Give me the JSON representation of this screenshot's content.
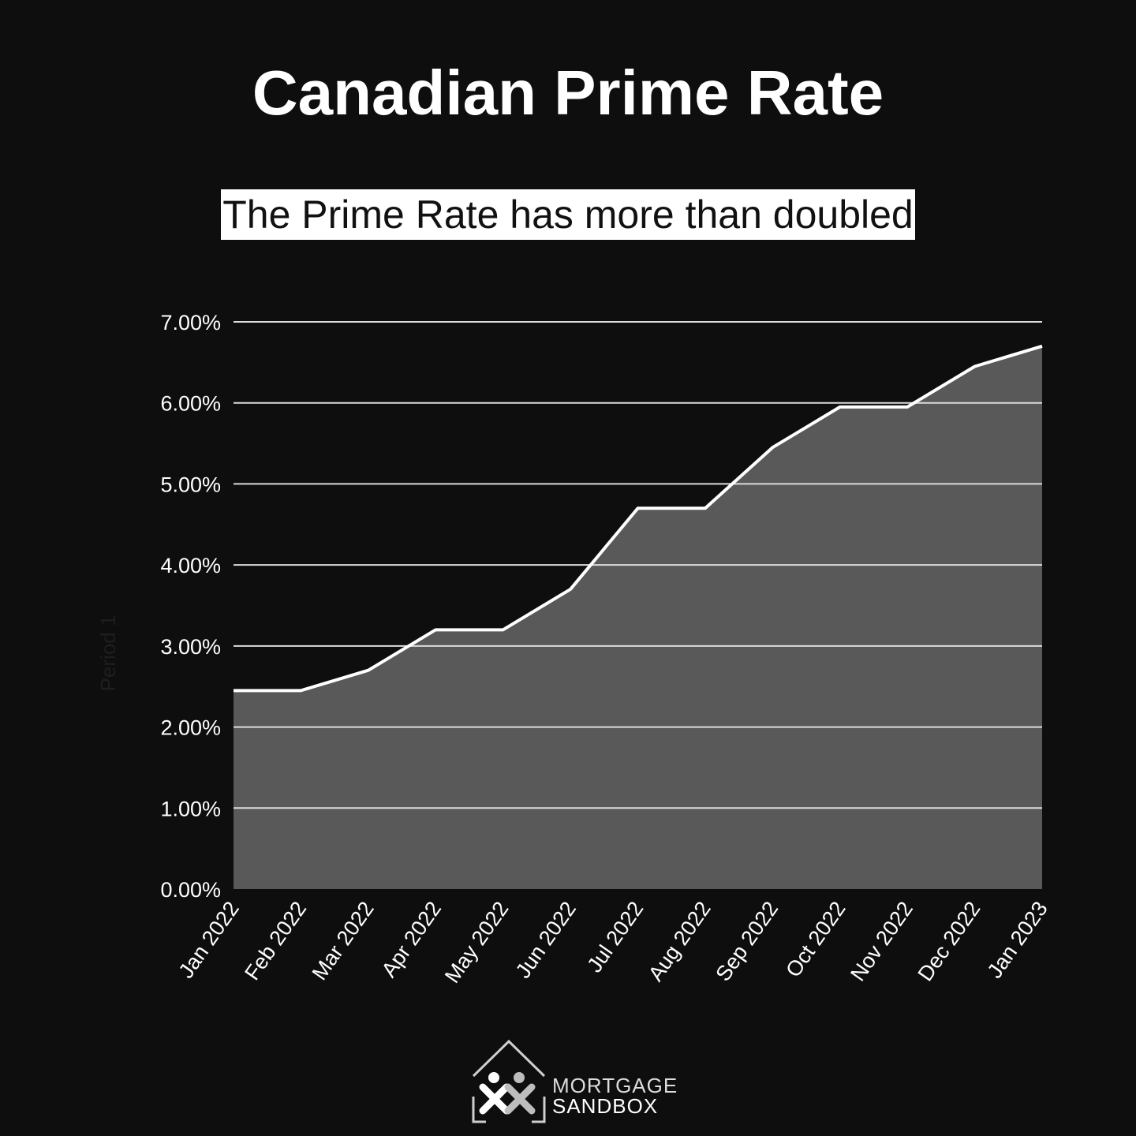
{
  "header": {
    "title": "Canadian Prime Rate",
    "subtitle": "The Prime Rate has more than doubled"
  },
  "colors": {
    "background": "#0e0e0e",
    "area_fill": "#595959",
    "line": "#ffffff",
    "grid": "#dcdcdc",
    "text": "#ffffff",
    "axis_title": "#1e1e1e"
  },
  "chart_data": {
    "type": "area",
    "title": "",
    "xlabel": "",
    "ylabel": "Period 1",
    "x": [
      "Jan 2022",
      "Feb 2022",
      "Mar 2022",
      "Apr 2022",
      "May 2022",
      "Jun 2022",
      "Jul 2022",
      "Aug 2022",
      "Sep 2022",
      "Oct 2022",
      "Nov 2022",
      "Dec 2022",
      "Jan 2023"
    ],
    "series": [
      {
        "values": [
          2.45,
          2.45,
          2.7,
          3.2,
          3.2,
          3.7,
          4.7,
          4.7,
          5.45,
          5.95,
          5.95,
          6.45,
          6.7
        ]
      }
    ],
    "ylim": [
      0,
      7
    ],
    "yticks": [
      "0.00%",
      "1.00%",
      "2.00%",
      "3.00%",
      "4.00%",
      "5.00%",
      "6.00%",
      "7.00%"
    ],
    "grid": true,
    "legend": "none"
  },
  "logo": {
    "line1": "MORTGAGE",
    "line2": "SANDBOX",
    "icon": "house-people-icon"
  }
}
